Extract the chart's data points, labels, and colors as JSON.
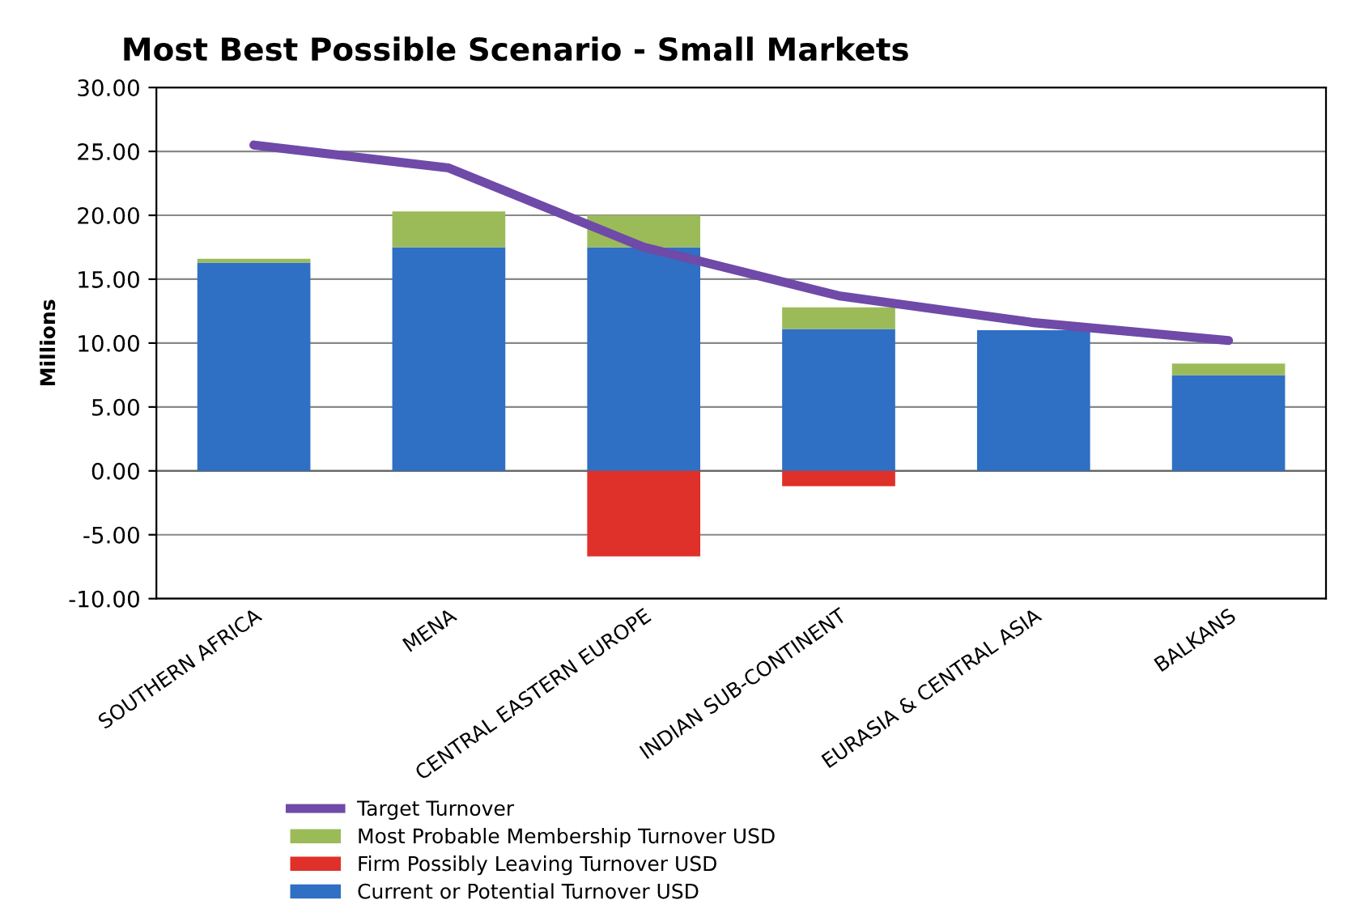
{
  "chart_data": {
    "type": "bar",
    "title": "Most Best Possible Scenario - Small Markets",
    "ylabel": "Millions",
    "categories": [
      "SOUTHERN AFRICA",
      "MENA",
      "CENTRAL EASTERN EUROPE",
      "INDIAN SUB-CONTINENT",
      "EURASIA & CENTRAL ASIA",
      "BALKANS"
    ],
    "stacked": true,
    "series": [
      {
        "name": "Current or Potential Turnover USD",
        "color": "#2f6fc4",
        "values": [
          16.3,
          17.5,
          17.5,
          11.1,
          11.0,
          7.5
        ]
      },
      {
        "name": "Firm Possibly Leaving Turnover USD",
        "color": "#e0302a",
        "values": [
          0,
          0,
          -6.7,
          -1.2,
          0,
          0
        ]
      },
      {
        "name": "Most Probable Membership Turnover USD",
        "color": "#9bbb59",
        "values": [
          0.3,
          2.8,
          2.5,
          1.7,
          0,
          0.9
        ]
      },
      {
        "name": "Target Turnover",
        "type": "line",
        "color": "#6f4aa8",
        "values": [
          25.5,
          23.7,
          17.5,
          13.7,
          11.6,
          10.2
        ]
      }
    ],
    "ylim": [
      -10,
      30
    ],
    "yticks": [
      {
        "value": -10,
        "label": "-10.00"
      },
      {
        "value": -5,
        "label": "-5.00"
      },
      {
        "value": 0,
        "label": "0.00"
      },
      {
        "value": 5,
        "label": "5.00"
      },
      {
        "value": 10,
        "label": "10.00"
      },
      {
        "value": 15,
        "label": "15.00"
      },
      {
        "value": 20,
        "label": "20.00"
      },
      {
        "value": 25,
        "label": "25.00"
      },
      {
        "value": 30,
        "label": "30.00"
      }
    ],
    "grid": "y",
    "legend": "bottom"
  }
}
